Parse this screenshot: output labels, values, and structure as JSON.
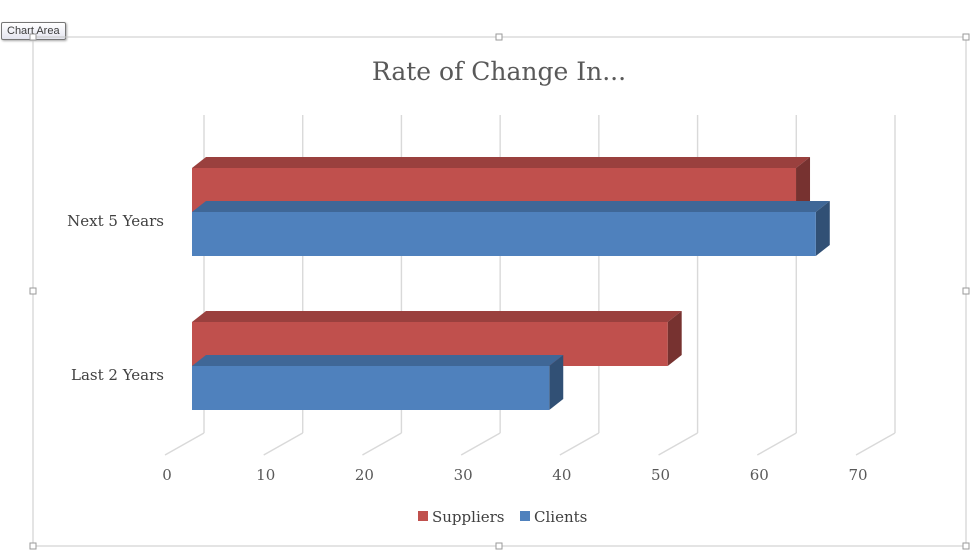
{
  "tooltip": {
    "label": "Chart Area"
  },
  "chart_data": {
    "type": "bar",
    "orientation": "horizontal",
    "style": "3d",
    "title": "Rate of Change In...",
    "categories": [
      "Last 2 Years",
      "Next 5 Years"
    ],
    "series": [
      {
        "name": "Suppliers",
        "color": "#c0504d",
        "values": [
          49,
          62
        ]
      },
      {
        "name": "Clients",
        "color": "#4f81bd",
        "values": [
          37,
          64
        ]
      }
    ],
    "xlim": [
      0,
      70
    ],
    "xticks": [
      "0",
      "10",
      "20",
      "30",
      "40",
      "50",
      "60",
      "70"
    ],
    "grid": true,
    "legend": "bottom"
  }
}
